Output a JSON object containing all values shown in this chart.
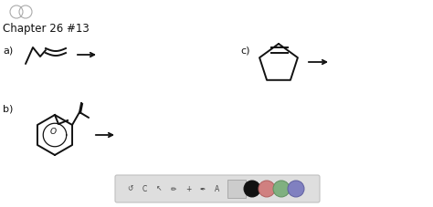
{
  "background_color": "#ffffff",
  "title_text": "Chapter 26 #13",
  "title_fontsize": 8.5,
  "label_a": "a)",
  "label_b": "b)",
  "label_c": "c)",
  "label_fontsize": 8,
  "arrow_color": "#111111",
  "structure_color": "#111111",
  "toolbar_colors_fill": [
    "#111111",
    "#d08080",
    "#80b080",
    "#8080c0"
  ],
  "toolbar_colors_edge": [
    "#111111",
    "#b06060",
    "#609060",
    "#6060a0"
  ]
}
